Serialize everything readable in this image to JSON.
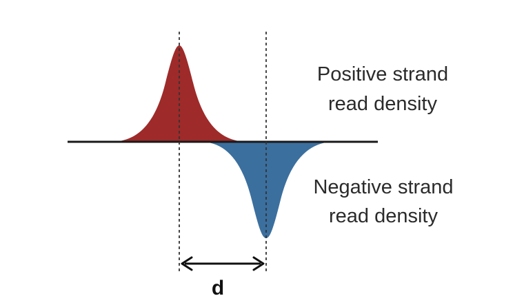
{
  "diagram": {
    "positive_label": {
      "line1": "Positive strand",
      "line2": "read density"
    },
    "negative_label": {
      "line1": "Negative strand",
      "line2": "read density"
    },
    "distance_label": "d"
  },
  "colors": {
    "positive_fill": "#9e2a2a",
    "negative_fill": "#3b6f9e",
    "axis": "#1a1a1a",
    "guide": "#333333",
    "text": "#2b2b2b"
  }
}
